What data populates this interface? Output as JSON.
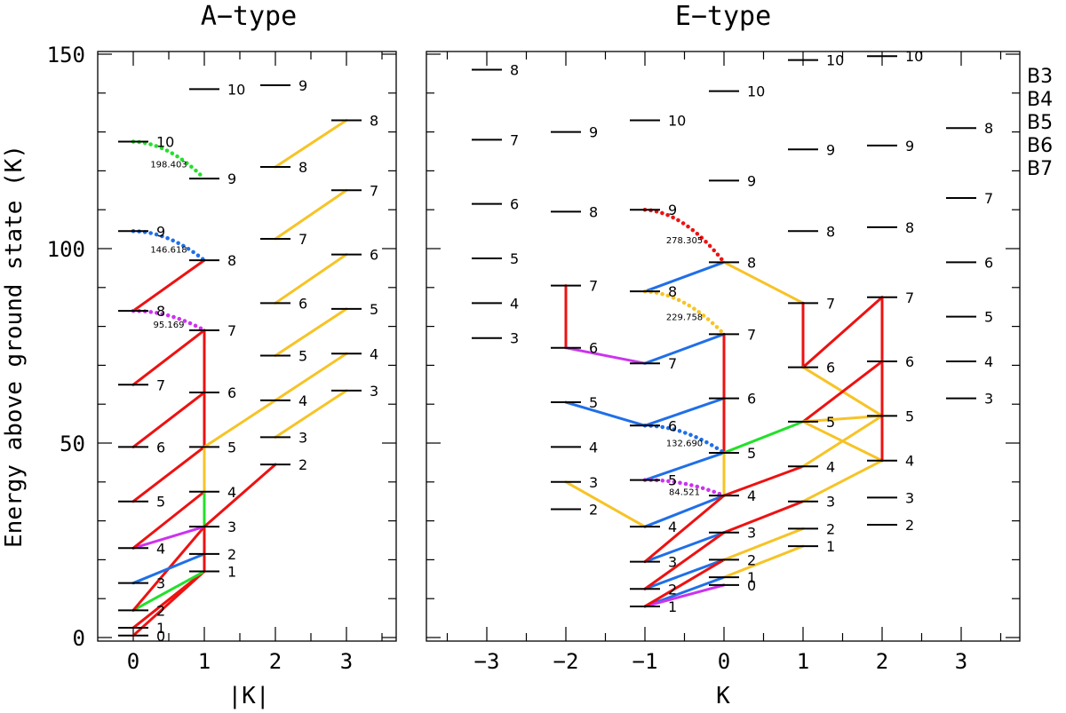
{
  "band_colors": {
    "B3": "#cc33ee",
    "B4": "#1f6fe8",
    "B5": "#22e02a",
    "B6": "#f7c325",
    "B7": "#ee1111"
  },
  "y_axis_label": "Energy above ground state (K)",
  "y_ticks": [
    "0",
    "50",
    "100",
    "150"
  ],
  "legend": [
    {
      "band": "B3",
      "label": "B3"
    },
    {
      "band": "B4",
      "label": "B4"
    },
    {
      "band": "B5",
      "label": "B5"
    },
    {
      "band": "B6",
      "label": "B6"
    },
    {
      "band": "B7",
      "label": "B7"
    }
  ],
  "panels": [
    {
      "title": "A−type",
      "xlabel": "|K|",
      "x_ticks": [
        {
          "k": 0,
          "label": "0"
        },
        {
          "k": 1,
          "label": "1"
        },
        {
          "k": 2,
          "label": "2"
        },
        {
          "k": 3,
          "label": "3"
        }
      ],
      "levels": [
        {
          "k": 0,
          "e": 0.5,
          "j": "0"
        },
        {
          "k": 0,
          "e": 2.5,
          "j": "1"
        },
        {
          "k": 0,
          "e": 7,
          "j": "2"
        },
        {
          "k": 0,
          "e": 14,
          "j": "3"
        },
        {
          "k": 0,
          "e": 23,
          "j": "4"
        },
        {
          "k": 0,
          "e": 35,
          "j": "5"
        },
        {
          "k": 0,
          "e": 49,
          "j": "6"
        },
        {
          "k": 0,
          "e": 65,
          "j": "7"
        },
        {
          "k": 0,
          "e": 84,
          "j": "8"
        },
        {
          "k": 0,
          "e": 104.5,
          "j": "9"
        },
        {
          "k": 0,
          "e": 127.5,
          "j": "10"
        },
        {
          "k": 1,
          "e": 17,
          "j": "1"
        },
        {
          "k": 1,
          "e": 21.5,
          "j": "2"
        },
        {
          "k": 1,
          "e": 28.5,
          "j": "3"
        },
        {
          "k": 1,
          "e": 37.5,
          "j": "4"
        },
        {
          "k": 1,
          "e": 49,
          "j": "5"
        },
        {
          "k": 1,
          "e": 63,
          "j": "6"
        },
        {
          "k": 1,
          "e": 79,
          "j": "7"
        },
        {
          "k": 1,
          "e": 97,
          "j": "8"
        },
        {
          "k": 1,
          "e": 118,
          "j": "9"
        },
        {
          "k": 1,
          "e": 141,
          "j": "10"
        },
        {
          "k": 2,
          "e": 44.5,
          "j": "2"
        },
        {
          "k": 2,
          "e": 51.5,
          "j": "3"
        },
        {
          "k": 2,
          "e": 61,
          "j": "4"
        },
        {
          "k": 2,
          "e": 72.5,
          "j": "5"
        },
        {
          "k": 2,
          "e": 86,
          "j": "6"
        },
        {
          "k": 2,
          "e": 102.5,
          "j": "7"
        },
        {
          "k": 2,
          "e": 121,
          "j": "8"
        },
        {
          "k": 2,
          "e": 142,
          "j": "9"
        },
        {
          "k": 3,
          "e": 63.5,
          "j": "3"
        },
        {
          "k": 3,
          "e": 73,
          "j": "4"
        },
        {
          "k": 3,
          "e": 84.5,
          "j": "5"
        },
        {
          "k": 3,
          "e": 98.5,
          "j": "6"
        },
        {
          "k": 3,
          "e": 115,
          "j": "7"
        },
        {
          "k": 3,
          "e": 133,
          "j": "8"
        }
      ],
      "transitions": [
        {
          "k1": 0,
          "e1": 0.5,
          "k2": 1,
          "e2": 17,
          "band": "B7"
        },
        {
          "k1": 0,
          "e1": 2.5,
          "k2": 1,
          "e2": 17,
          "band": "B7"
        },
        {
          "k1": 0,
          "e1": 7,
          "k2": 1,
          "e2": 17,
          "band": "B5"
        },
        {
          "k1": 0,
          "e1": 7,
          "k2": 1,
          "e2": 28.5,
          "band": "B7"
        },
        {
          "k1": 0,
          "e1": 14,
          "k2": 1,
          "e2": 21.5,
          "band": "B4"
        },
        {
          "k1": 0,
          "e1": 23,
          "k2": 1,
          "e2": 28.5,
          "band": "B3"
        },
        {
          "k1": 0,
          "e1": 23,
          "k2": 1,
          "e2": 37.5,
          "band": "B7"
        },
        {
          "k1": 0,
          "e1": 35,
          "k2": 1,
          "e2": 49,
          "band": "B7"
        },
        {
          "k1": 0,
          "e1": 49,
          "k2": 1,
          "e2": 63,
          "band": "B7"
        },
        {
          "k1": 0,
          "e1": 65,
          "k2": 1,
          "e2": 79,
          "band": "B7"
        },
        {
          "k1": 0,
          "e1": 84,
          "k2": 1,
          "e2": 97,
          "band": "B7"
        },
        {
          "k1": 1,
          "e1": 17,
          "k2": 1,
          "e2": 21.5,
          "band": "B7"
        },
        {
          "k1": 1,
          "e1": 21.5,
          "k2": 1,
          "e2": 28.5,
          "band": "B7"
        },
        {
          "k1": 1,
          "e1": 28.5,
          "k2": 1,
          "e2": 37.5,
          "band": "B5"
        },
        {
          "k1": 1,
          "e1": 37.5,
          "k2": 1,
          "e2": 49,
          "band": "B6"
        },
        {
          "k1": 1,
          "e1": 49,
          "k2": 1,
          "e2": 79,
          "band": "B7"
        },
        {
          "k1": 1,
          "e1": 28.5,
          "k2": 2,
          "e2": 44.5,
          "band": "B7"
        },
        {
          "k1": 1,
          "e1": 49,
          "k2": 2,
          "e2": 61,
          "band": "B6"
        },
        {
          "k1": 2,
          "e1": 51.5,
          "k2": 3,
          "e2": 63.5,
          "band": "B6"
        },
        {
          "k1": 2,
          "e1": 61,
          "k2": 3,
          "e2": 73,
          "band": "B6"
        },
        {
          "k1": 2,
          "e1": 72.5,
          "k2": 3,
          "e2": 84.5,
          "band": "B6"
        },
        {
          "k1": 2,
          "e1": 86,
          "k2": 3,
          "e2": 98.5,
          "band": "B6"
        },
        {
          "k1": 2,
          "e1": 102.5,
          "k2": 3,
          "e2": 115,
          "band": "B6"
        },
        {
          "k1": 2,
          "e1": 121,
          "k2": 3,
          "e2": 133,
          "band": "B6"
        }
      ],
      "dotted": [
        {
          "k1": 0,
          "e1": 84,
          "k2": 1,
          "e2": 79,
          "band": "B3",
          "label": "95.169"
        },
        {
          "k1": 0,
          "e1": 104.5,
          "k2": 1,
          "e2": 97,
          "band": "B4",
          "label": "146.618"
        },
        {
          "k1": 0,
          "e1": 127.5,
          "k2": 1,
          "e2": 118,
          "band": "B5",
          "label": "198.403"
        }
      ]
    },
    {
      "title": "E−type",
      "xlabel": "K",
      "x_ticks": [
        {
          "k": -3,
          "label": "−3"
        },
        {
          "k": -2,
          "label": "−2"
        },
        {
          "k": -1,
          "label": "−1"
        },
        {
          "k": 0,
          "label": "0"
        },
        {
          "k": 1,
          "label": "1"
        },
        {
          "k": 2,
          "label": "2"
        },
        {
          "k": 3,
          "label": "3"
        }
      ],
      "levels": [
        {
          "k": -3,
          "e": 77,
          "j": "3"
        },
        {
          "k": -3,
          "e": 86,
          "j": "4"
        },
        {
          "k": -3,
          "e": 97.5,
          "j": "5"
        },
        {
          "k": -3,
          "e": 111.5,
          "j": "6"
        },
        {
          "k": -3,
          "e": 128,
          "j": "7"
        },
        {
          "k": -3,
          "e": 146,
          "j": "8"
        },
        {
          "k": -2,
          "e": 33,
          "j": "2"
        },
        {
          "k": -2,
          "e": 40,
          "j": "3"
        },
        {
          "k": -2,
          "e": 49,
          "j": "4"
        },
        {
          "k": -2,
          "e": 60.5,
          "j": "5"
        },
        {
          "k": -2,
          "e": 74.5,
          "j": "6"
        },
        {
          "k": -2,
          "e": 90.5,
          "j": "7"
        },
        {
          "k": -2,
          "e": 109.5,
          "j": "8"
        },
        {
          "k": -2,
          "e": 130,
          "j": "9"
        },
        {
          "k": -1,
          "e": 8,
          "j": "1"
        },
        {
          "k": -1,
          "e": 12.5,
          "j": "2"
        },
        {
          "k": -1,
          "e": 19.5,
          "j": "3"
        },
        {
          "k": -1,
          "e": 28.5,
          "j": "4"
        },
        {
          "k": -1,
          "e": 40.5,
          "j": "5"
        },
        {
          "k": -1,
          "e": 54.5,
          "j": "6"
        },
        {
          "k": -1,
          "e": 70.5,
          "j": "7"
        },
        {
          "k": -1,
          "e": 89,
          "j": "8"
        },
        {
          "k": -1,
          "e": 110,
          "j": "9"
        },
        {
          "k": -1,
          "e": 133,
          "j": "10"
        },
        {
          "k": 0,
          "e": 13.5,
          "j": "0"
        },
        {
          "k": 0,
          "e": 15.5,
          "j": "1"
        },
        {
          "k": 0,
          "e": 20,
          "j": "2"
        },
        {
          "k": 0,
          "e": 27,
          "j": "3"
        },
        {
          "k": 0,
          "e": 36.5,
          "j": "4"
        },
        {
          "k": 0,
          "e": 47.5,
          "j": "5"
        },
        {
          "k": 0,
          "e": 61.5,
          "j": "6"
        },
        {
          "k": 0,
          "e": 78,
          "j": "7"
        },
        {
          "k": 0,
          "e": 96.5,
          "j": "8"
        },
        {
          "k": 0,
          "e": 117.5,
          "j": "9"
        },
        {
          "k": 0,
          "e": 140.5,
          "j": "10"
        },
        {
          "k": 1,
          "e": 23.5,
          "j": "1"
        },
        {
          "k": 1,
          "e": 28,
          "j": "2"
        },
        {
          "k": 1,
          "e": 35,
          "j": "3"
        },
        {
          "k": 1,
          "e": 44,
          "j": "4"
        },
        {
          "k": 1,
          "e": 55.5,
          "j": "5"
        },
        {
          "k": 1,
          "e": 69.5,
          "j": "6"
        },
        {
          "k": 1,
          "e": 86,
          "j": "7"
        },
        {
          "k": 1,
          "e": 104.5,
          "j": "8"
        },
        {
          "k": 1,
          "e": 125.5,
          "j": "9"
        },
        {
          "k": 1,
          "e": 148.5,
          "j": "10"
        },
        {
          "k": 2,
          "e": 29,
          "j": "2"
        },
        {
          "k": 2,
          "e": 36,
          "j": "3"
        },
        {
          "k": 2,
          "e": 45.5,
          "j": "4"
        },
        {
          "k": 2,
          "e": 57,
          "j": "5"
        },
        {
          "k": 2,
          "e": 71,
          "j": "6"
        },
        {
          "k": 2,
          "e": 87.5,
          "j": "7"
        },
        {
          "k": 2,
          "e": 105.5,
          "j": "8"
        },
        {
          "k": 2,
          "e": 126.5,
          "j": "9"
        },
        {
          "k": 2,
          "e": 149.5,
          "j": "10"
        },
        {
          "k": 3,
          "e": 61.5,
          "j": "3"
        },
        {
          "k": 3,
          "e": 71,
          "j": "4"
        },
        {
          "k": 3,
          "e": 82.5,
          "j": "5"
        },
        {
          "k": 3,
          "e": 96.5,
          "j": "6"
        },
        {
          "k": 3,
          "e": 113,
          "j": "7"
        },
        {
          "k": 3,
          "e": 131,
          "j": "8"
        }
      ],
      "transitions": [
        {
          "k1": -2,
          "e1": 90.5,
          "k2": -2,
          "e2": 74.5,
          "band": "B7"
        },
        {
          "k1": -2,
          "e1": 74.5,
          "k2": -1,
          "e2": 70.5,
          "band": "B3"
        },
        {
          "k1": -2,
          "e1": 60.5,
          "k2": -1,
          "e2": 54.5,
          "band": "B4"
        },
        {
          "k1": -2,
          "e1": 40,
          "k2": -1,
          "e2": 28.5,
          "band": "B6"
        },
        {
          "k1": -1,
          "e1": 89,
          "k2": 0,
          "e2": 96.5,
          "band": "B4"
        },
        {
          "k1": -1,
          "e1": 70.5,
          "k2": 0,
          "e2": 78,
          "band": "B4"
        },
        {
          "k1": -1,
          "e1": 54.5,
          "k2": 0,
          "e2": 61.5,
          "band": "B4"
        },
        {
          "k1": -1,
          "e1": 40.5,
          "k2": 0,
          "e2": 47.5,
          "band": "B4"
        },
        {
          "k1": -1,
          "e1": 28.5,
          "k2": 0,
          "e2": 36.5,
          "band": "B4"
        },
        {
          "k1": -1,
          "e1": 19.5,
          "k2": 0,
          "e2": 27,
          "band": "B4"
        },
        {
          "k1": -1,
          "e1": 12.5,
          "k2": 0,
          "e2": 20,
          "band": "B4"
        },
        {
          "k1": -1,
          "e1": 8,
          "k2": 0,
          "e2": 15.5,
          "band": "B4"
        },
        {
          "k1": -1,
          "e1": 8,
          "k2": 0,
          "e2": 13.5,
          "band": "B3"
        },
        {
          "k1": -1,
          "e1": 19.5,
          "k2": 0,
          "e2": 36.5,
          "band": "B7"
        },
        {
          "k1": -1,
          "e1": 12.5,
          "k2": 0,
          "e2": 27,
          "band": "B7"
        },
        {
          "k1": -1,
          "e1": 8,
          "k2": 0,
          "e2": 20,
          "band": "B7"
        },
        {
          "k1": 0,
          "e1": 78,
          "k2": 0,
          "e2": 47.5,
          "band": "B7"
        },
        {
          "k1": 0,
          "e1": 47.5,
          "k2": 0,
          "e2": 36.5,
          "band": "B6"
        },
        {
          "k1": 0,
          "e1": 96.5,
          "k2": 1,
          "e2": 86,
          "band": "B6"
        },
        {
          "k1": 0,
          "e1": 47.5,
          "k2": 1,
          "e2": 55.5,
          "band": "B5"
        },
        {
          "k1": 0,
          "e1": 36.5,
          "k2": 1,
          "e2": 44,
          "band": "B7"
        },
        {
          "k1": 0,
          "e1": 27,
          "k2": 1,
          "e2": 35,
          "band": "B7"
        },
        {
          "k1": 0,
          "e1": 20,
          "k2": 1,
          "e2": 28,
          "band": "B6"
        },
        {
          "k1": 0,
          "e1": 15.5,
          "k2": 1,
          "e2": 23.5,
          "band": "B6"
        },
        {
          "k1": 1,
          "e1": 86,
          "k2": 1,
          "e2": 69.5,
          "band": "B7"
        },
        {
          "k1": 1,
          "e1": 69.5,
          "k2": 2,
          "e2": 87.5,
          "band": "B7"
        },
        {
          "k1": 1,
          "e1": 69.5,
          "k2": 2,
          "e2": 57,
          "band": "B6"
        },
        {
          "k1": 1,
          "e1": 55.5,
          "k2": 2,
          "e2": 71,
          "band": "B7"
        },
        {
          "k1": 1,
          "e1": 55.5,
          "k2": 2,
          "e2": 45.5,
          "band": "B6"
        },
        {
          "k1": 1,
          "e1": 44,
          "k2": 2,
          "e2": 57,
          "band": "B6"
        },
        {
          "k1": 1,
          "e1": 35,
          "k2": 2,
          "e2": 45.5,
          "band": "B6"
        },
        {
          "k1": 1,
          "e1": 55.5,
          "k2": 2,
          "e2": 57,
          "band": "B6"
        },
        {
          "k1": 2,
          "e1": 87.5,
          "k2": 2,
          "e2": 45.5,
          "band": "B7"
        }
      ],
      "dotted": [
        {
          "k1": -1,
          "e1": 110,
          "k2": 0,
          "e2": 96.5,
          "band": "B7",
          "label": "278.305"
        },
        {
          "k1": -1,
          "e1": 89,
          "k2": 0,
          "e2": 78,
          "band": "B6",
          "label": "229.758"
        },
        {
          "k1": -1,
          "e1": 54.5,
          "k2": 0,
          "e2": 47.5,
          "band": "B4",
          "label": "132.690"
        },
        {
          "k1": -1,
          "e1": 40.5,
          "k2": 0,
          "e2": 36.5,
          "band": "B3",
          "label": "84.521"
        }
      ]
    }
  ]
}
